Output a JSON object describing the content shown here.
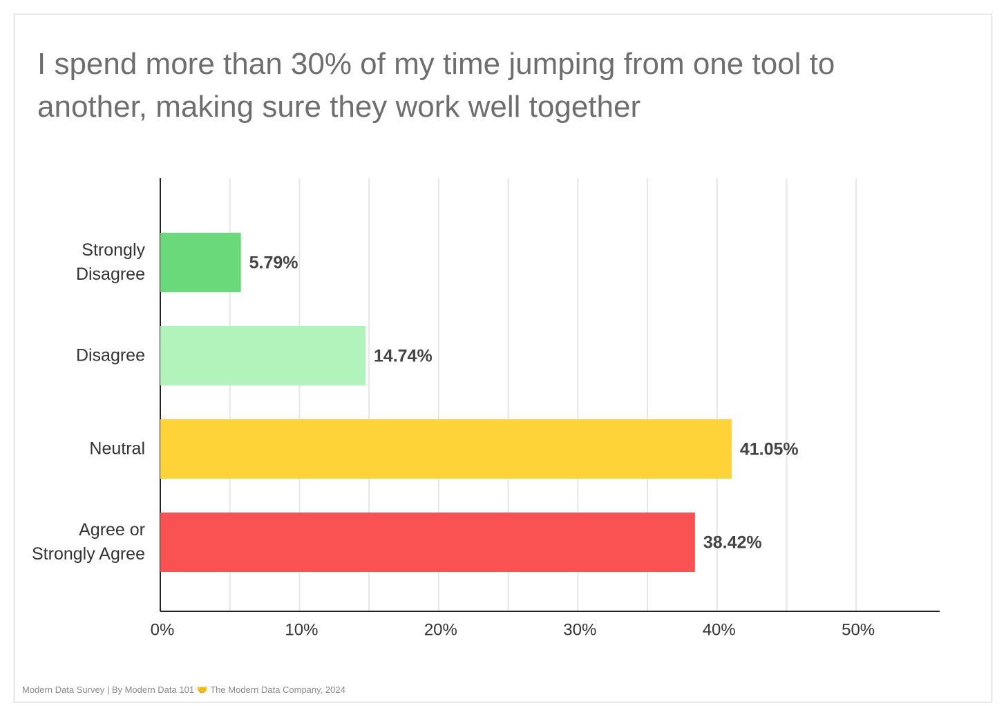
{
  "chart_data": {
    "type": "bar",
    "orientation": "horizontal",
    "title": "I spend more than 30% of my time jumping from one tool to another, making sure they work well together",
    "categories": [
      "Strongly Disagree",
      "Disagree",
      "Neutral",
      "Agree or Strongly Agree"
    ],
    "values": [
      5.79,
      14.74,
      41.05,
      38.42
    ],
    "value_labels": [
      "5.79%",
      "14.74%",
      "41.05%",
      "38.42%"
    ],
    "colors": [
      "#69d97a",
      "#b1f3bb",
      "#fdd338",
      "#fa5252"
    ],
    "xlim": [
      0,
      56
    ],
    "xticks": [
      {
        "value": 0,
        "label": "0%"
      },
      {
        "value": 10,
        "label": "10%"
      },
      {
        "value": 20,
        "label": "20%"
      },
      {
        "value": 30,
        "label": "30%"
      },
      {
        "value": 40,
        "label": "40%"
      },
      {
        "value": 50,
        "label": "50%"
      }
    ],
    "minor_xticks": [
      5,
      15,
      25,
      35,
      45
    ],
    "grid": true,
    "footer": "Modern Data Survey | By Modern Data 101 🤝 The Modern Data Company, 2024"
  }
}
